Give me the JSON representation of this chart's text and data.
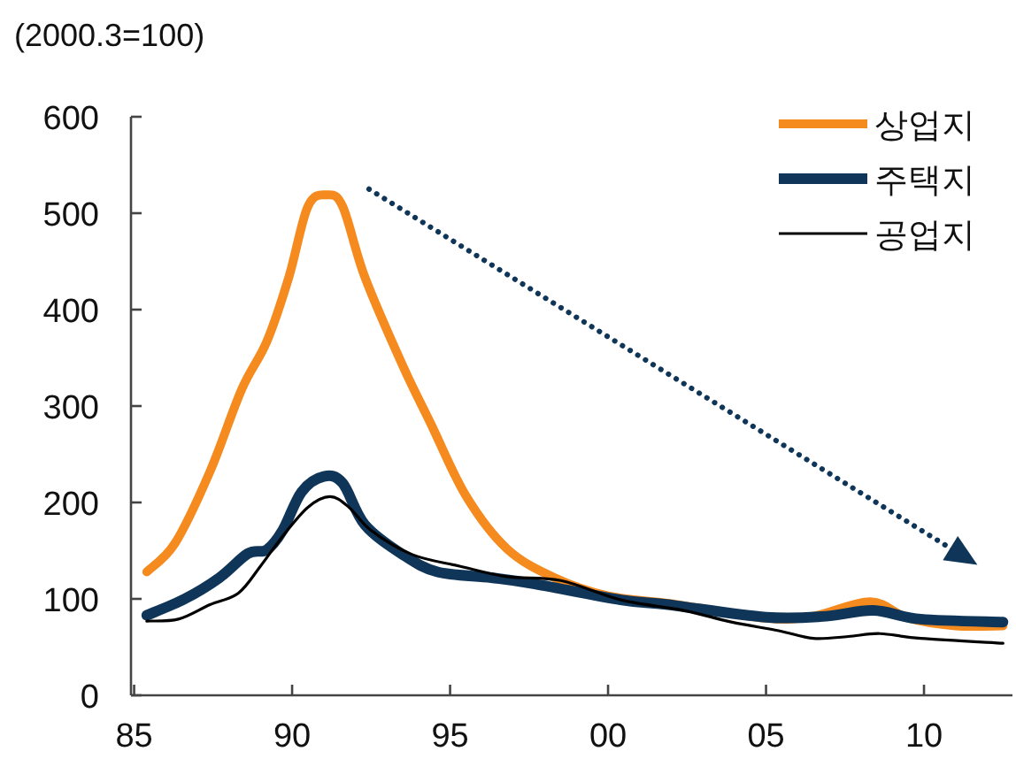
{
  "chart_data": {
    "type": "line",
    "ylabel": "(2000.3=100)",
    "xlim": [
      1984.9,
      2012.8
    ],
    "xticks": [
      {
        "value": 1985,
        "label": "85"
      },
      {
        "value": 1990,
        "label": "90"
      },
      {
        "value": 1995,
        "label": "95"
      },
      {
        "value": 2000,
        "label": "00"
      },
      {
        "value": 2005,
        "label": "05"
      },
      {
        "value": 2010,
        "label": "10"
      }
    ],
    "ylim": [
      0,
      600
    ],
    "yticks": [
      0,
      100,
      200,
      300,
      400,
      500,
      600
    ],
    "grid": false,
    "legend": "top right",
    "marker": "none",
    "line_style": "solid",
    "series": [
      {
        "name": "상업지",
        "color": "#f58a1f",
        "x": [
          1985.4,
          1986.3,
          1987.4,
          1988.4,
          1989.2,
          1989.9,
          1990.5,
          1991.1,
          1991.6,
          1992.3,
          1993.5,
          1994.4,
          1995.5,
          1996.8,
          1998.3,
          2000.0,
          2002.0,
          2005.0,
          2006.5,
          2008.3,
          2009.5,
          2011.0,
          2012.5
        ],
        "values": [
          128,
          158,
          232,
          317,
          367,
          434,
          507,
          519,
          507,
          434,
          342,
          281,
          207,
          152,
          122,
          103,
          95,
          80,
          82,
          97,
          80,
          72,
          72
        ]
      },
      {
        "name": "주택지",
        "color": "#0f3558",
        "x": [
          1985.4,
          1986.6,
          1987.7,
          1988.6,
          1989.2,
          1989.7,
          1990.3,
          1991.0,
          1991.6,
          1992.3,
          1993.5,
          1994.6,
          1996.3,
          1997.6,
          2000.4,
          2001.9,
          2005.0,
          2006.9,
          2008.4,
          2009.9,
          2012.5
        ],
        "values": [
          83,
          100,
          122,
          147,
          151,
          171,
          211,
          227,
          220,
          177,
          146,
          128,
          122,
          116,
          99,
          94,
          81,
          82,
          88,
          79,
          76
        ]
      },
      {
        "name": "공업지",
        "color": "#000000",
        "x": [
          1985.4,
          1986.4,
          1987.4,
          1988.3,
          1989.0,
          1989.7,
          1990.5,
          1991.2,
          1991.8,
          1992.5,
          1993.8,
          1995.3,
          1996.8,
          1998.5,
          2000.4,
          2002.4,
          2003.9,
          2005.4,
          2006.5,
          2007.6,
          2008.6,
          2009.9,
          2012.5
        ],
        "values": [
          77,
          79,
          94,
          106,
          134,
          165,
          195,
          206,
          195,
          171,
          146,
          134,
          123,
          119,
          99,
          88,
          76,
          67,
          59,
          61,
          64,
          59,
          54
        ]
      }
    ]
  }
}
